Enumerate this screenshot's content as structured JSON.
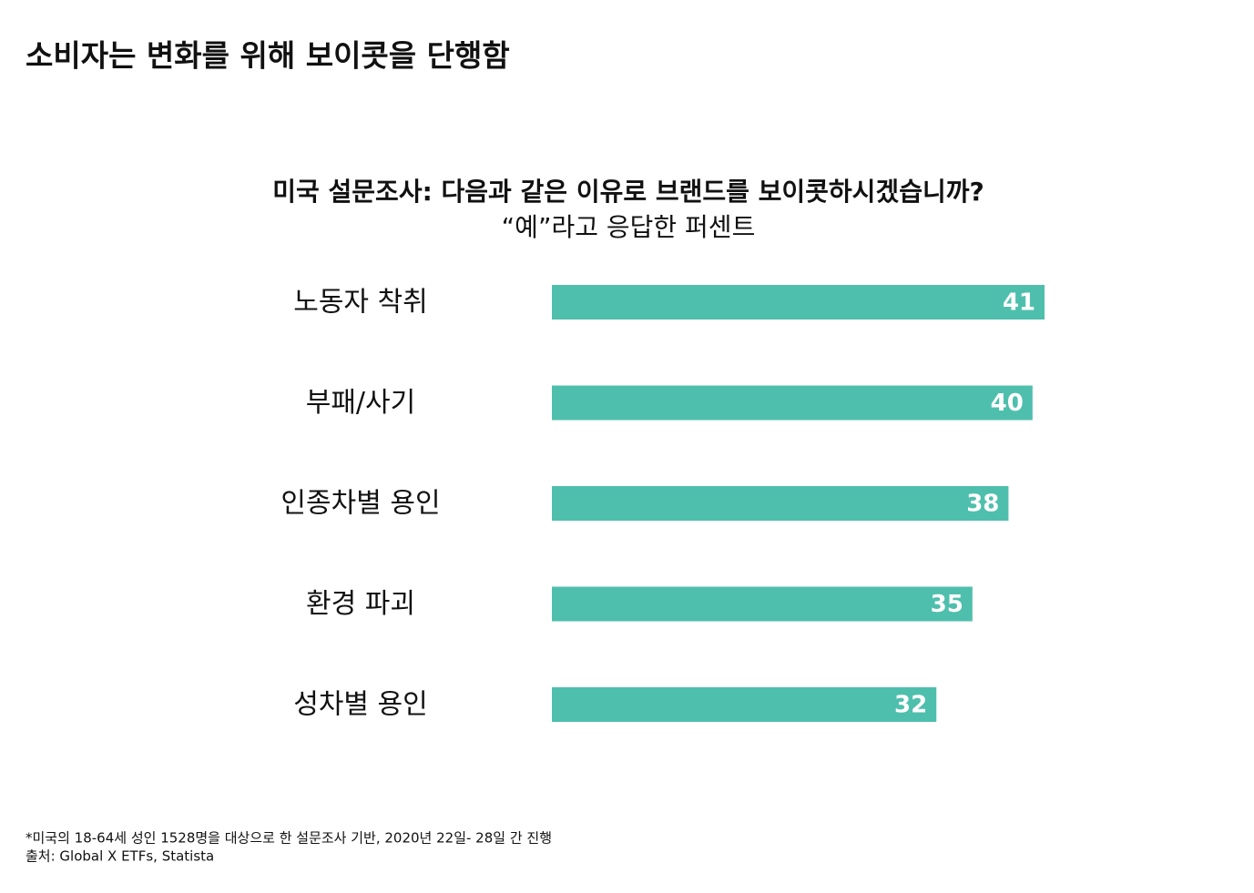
{
  "header": {
    "title": "소비자는 변화를 위해 보이콧을 단행함"
  },
  "chart_data": {
    "type": "bar",
    "orientation": "horizontal",
    "title": "미국 설문조사: 다음과 같은 이유로 브랜드를 보이콧하시겠습니까?",
    "subtitle": "“예”라고 응답한 퍼센트",
    "categories": [
      "노동자 착취",
      "부패/사기",
      "인종차별 용인",
      "환경 파괴",
      "성차별 용인"
    ],
    "values": [
      41,
      40,
      38,
      35,
      32
    ],
    "color": "#4fbfad"
  },
  "footnotes": [
    "*미국의 18-64세 성인 1528명을 대상으로 한 설문조사 기반, 2020년 22일- 28일 간 진행",
    "출처: Global X ETFs, Statista"
  ]
}
